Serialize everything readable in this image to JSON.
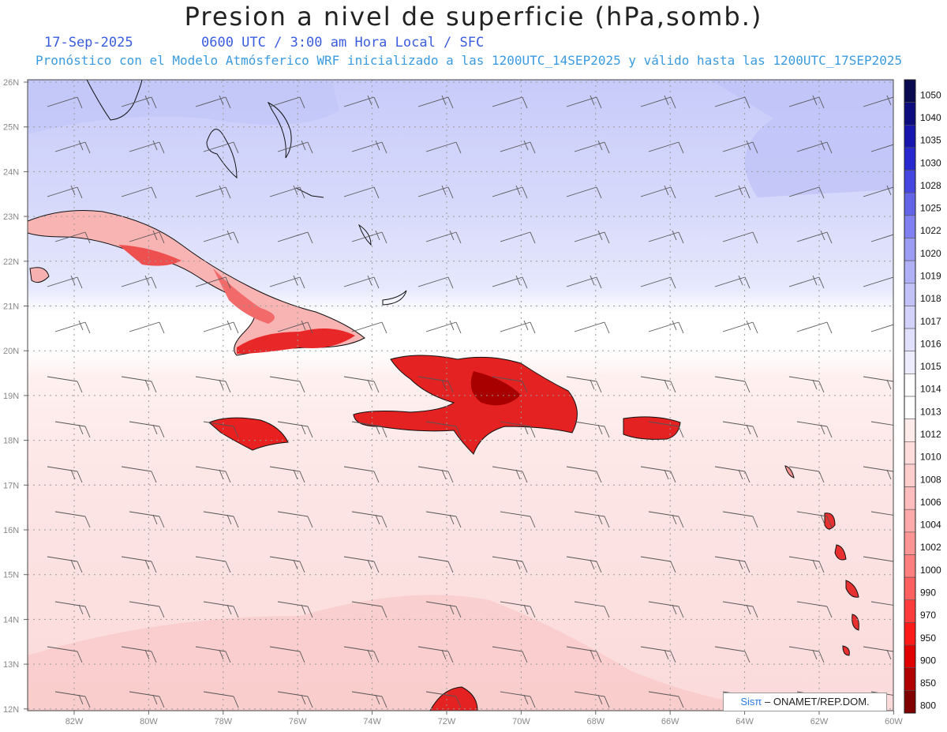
{
  "title": "Presion a nivel de superficie (hPa,somb.)",
  "date": "17-Sep-2025",
  "time_line": "0600 UTC / 3:00 am Hora Local / SFC",
  "forecast_line": "Pronóstico con el Modelo Atmósferico WRF inicializado a las 1200UTC_14SEP2025 y válido hasta las  1200UTC_17SEP2025",
  "credit": {
    "logo": "Sisπ",
    "text": "– ONAMET/REP.DOM."
  },
  "lat_labels": [
    "26N",
    "25N",
    "24N",
    "23N",
    "22N",
    "21N",
    "20N",
    "19N",
    "18N",
    "17N",
    "16N",
    "15N",
    "14N",
    "13N",
    "12N"
  ],
  "lon_labels": [
    "82W",
    "80W",
    "78W",
    "76W",
    "74W",
    "72W",
    "70W",
    "68W",
    "66W",
    "64W",
    "62W",
    "60W"
  ],
  "colorbar": {
    "levels": [
      "1050",
      "1040",
      "1035",
      "1030",
      "1028",
      "1025",
      "1022",
      "1020",
      "1019",
      "1018",
      "1017",
      "1016",
      "1015",
      "1014",
      "1013",
      "1012",
      "1010",
      "1008",
      "1006",
      "1004",
      "1002",
      "1000",
      "990",
      "970",
      "950",
      "900",
      "850",
      "800"
    ],
    "colors": [
      "#0a0a50",
      "#0d0d80",
      "#1717b0",
      "#2828d0",
      "#4646e0",
      "#6464e8",
      "#8080f0",
      "#9c9cf4",
      "#b0b0f6",
      "#c2c2f8",
      "#d2d2fa",
      "#e0e0fc",
      "#ececfd",
      "#ffffff",
      "#ffffff",
      "#ffeaea",
      "#ffdcdc",
      "#ffcdcd",
      "#ffbdbd",
      "#ffaaaa",
      "#ff9595",
      "#ff7e7e",
      "#ff6060",
      "#ff3c3c",
      "#ff1a1a",
      "#e00000",
      "#b00000",
      "#800000"
    ]
  },
  "fields": {
    "north_color": "#cfd2fb",
    "mid_color": "#e4e6fd",
    "south_color": "#fde4e4",
    "deep_south_color": "#fbd4d4",
    "land_low_color": "#ff3a3a",
    "land_mid_color": "#f5aaaa"
  }
}
